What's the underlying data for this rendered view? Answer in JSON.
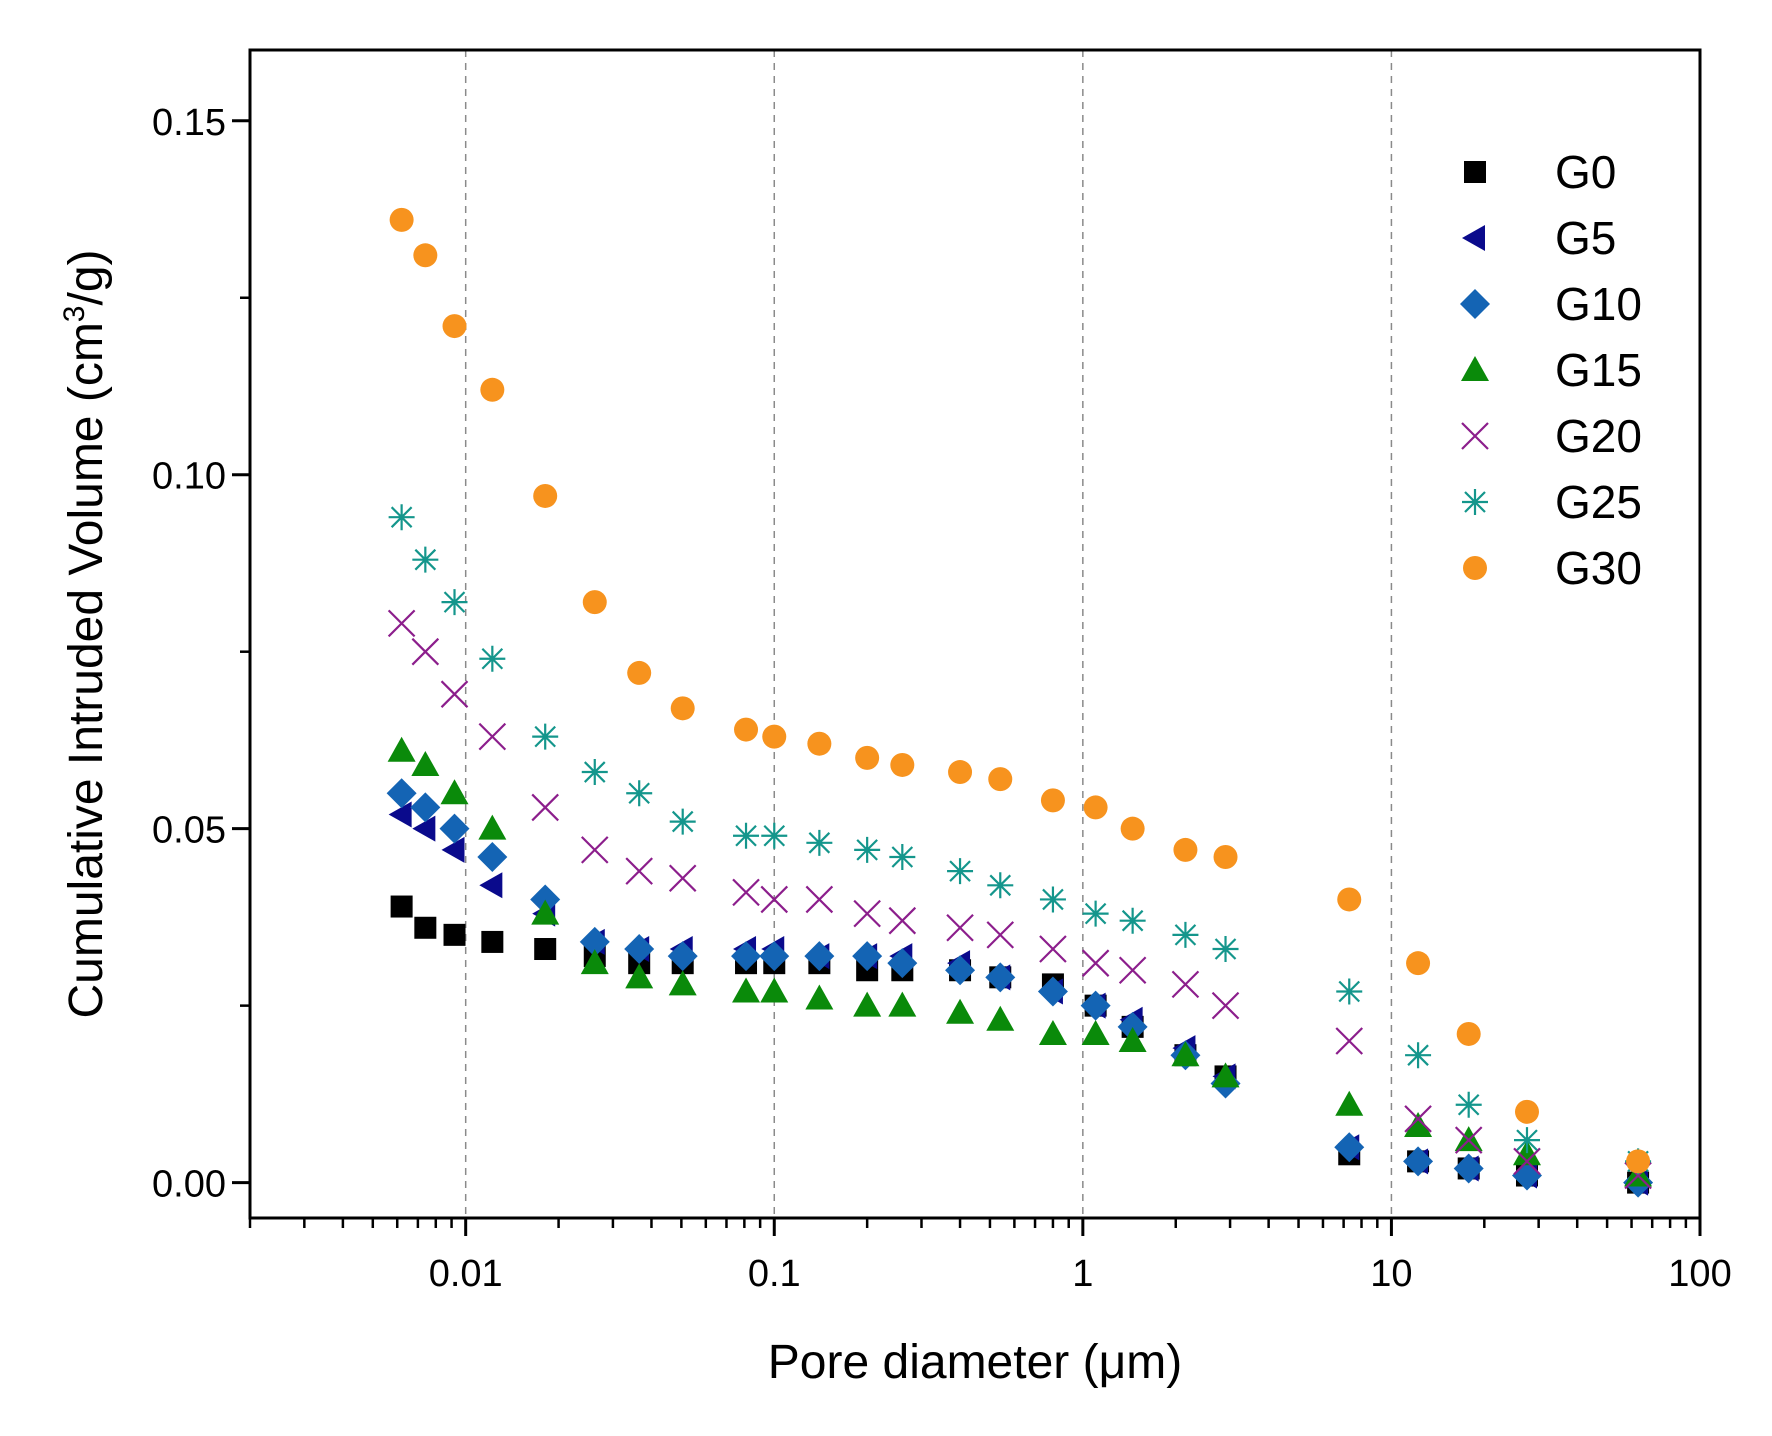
{
  "chart_data": {
    "type": "scatter",
    "xscale": "log",
    "xlabel": "Pore diameter (μm)",
    "ylabel_main": "Cumulative Intruded Volume (cm",
    "ylabel_sup": "3",
    "ylabel_end": "/g)",
    "xlim": [
      0.002,
      100
    ],
    "ylim": [
      -0.005,
      0.16
    ],
    "xticks": [
      0.01,
      0.1,
      1,
      10,
      100
    ],
    "xtick_labels": [
      "0.01",
      "0.1",
      "1",
      "10",
      "100"
    ],
    "yticks": [
      0.0,
      0.05,
      0.1,
      0.15
    ],
    "ytick_labels": [
      "0.00",
      "0.05",
      "0.10",
      "0.15"
    ],
    "vertical_gridlines": [
      0.01,
      0.1,
      1,
      10
    ],
    "legend_position": "top-right",
    "series": [
      {
        "name": "G0",
        "marker": "square",
        "color": "#000000",
        "x": [
          0.0062,
          0.0074,
          0.0092,
          0.0122,
          0.0181,
          0.0262,
          0.0365,
          0.0505,
          0.081,
          0.1,
          0.14,
          0.2,
          0.26,
          0.4,
          0.54,
          0.8,
          1.1,
          1.45,
          2.15,
          2.9,
          7.3,
          12.2,
          17.8,
          27.5,
          63
        ],
        "y": [
          0.039,
          0.036,
          0.035,
          0.034,
          0.033,
          0.032,
          0.031,
          0.031,
          0.031,
          0.031,
          0.031,
          0.03,
          0.03,
          0.03,
          0.029,
          0.028,
          0.025,
          0.022,
          0.018,
          0.015,
          0.004,
          0.003,
          0.002,
          0.001,
          0.0
        ]
      },
      {
        "name": "G5",
        "marker": "triangle-left",
        "color": "#0a0a8c",
        "x": [
          0.0062,
          0.0074,
          0.0092,
          0.0122,
          0.0181,
          0.0262,
          0.0365,
          0.0505,
          0.081,
          0.1,
          0.14,
          0.2,
          0.26,
          0.4,
          0.54,
          0.8,
          1.1,
          1.45,
          2.15,
          2.9,
          7.3,
          12.2,
          17.8,
          27.5,
          63
        ],
        "y": [
          0.052,
          0.05,
          0.047,
          0.042,
          0.038,
          0.034,
          0.033,
          0.033,
          0.033,
          0.033,
          0.032,
          0.032,
          0.032,
          0.031,
          0.029,
          0.027,
          0.025,
          0.023,
          0.019,
          0.015,
          0.005,
          0.003,
          0.002,
          0.001,
          0.0
        ]
      },
      {
        "name": "G10",
        "marker": "diamond",
        "color": "#1464b4",
        "x": [
          0.0062,
          0.0074,
          0.0092,
          0.0122,
          0.0181,
          0.0262,
          0.0365,
          0.0505,
          0.081,
          0.1,
          0.14,
          0.2,
          0.26,
          0.4,
          0.54,
          0.8,
          1.1,
          1.45,
          2.15,
          2.9,
          7.3,
          12.2,
          17.8,
          27.5,
          63
        ],
        "y": [
          0.055,
          0.053,
          0.05,
          0.046,
          0.04,
          0.034,
          0.033,
          0.032,
          0.032,
          0.032,
          0.032,
          0.032,
          0.031,
          0.03,
          0.029,
          0.027,
          0.025,
          0.022,
          0.018,
          0.014,
          0.005,
          0.003,
          0.002,
          0.001,
          0.0
        ]
      },
      {
        "name": "G15",
        "marker": "triangle-up",
        "color": "#0a8a0a",
        "x": [
          0.0062,
          0.0074,
          0.0092,
          0.0122,
          0.0181,
          0.0262,
          0.0365,
          0.0505,
          0.081,
          0.1,
          0.14,
          0.2,
          0.26,
          0.4,
          0.54,
          0.8,
          1.1,
          1.45,
          2.15,
          2.9,
          7.3,
          12.2,
          17.8,
          27.5,
          63
        ],
        "y": [
          0.061,
          0.059,
          0.055,
          0.05,
          0.038,
          0.031,
          0.029,
          0.028,
          0.027,
          0.027,
          0.026,
          0.025,
          0.025,
          0.024,
          0.023,
          0.021,
          0.021,
          0.02,
          0.018,
          0.015,
          0.011,
          0.008,
          0.006,
          0.004,
          0.001
        ]
      },
      {
        "name": "G20",
        "marker": "cross",
        "color": "#8c1e8c",
        "x": [
          0.0062,
          0.0074,
          0.0092,
          0.0122,
          0.0181,
          0.0262,
          0.0365,
          0.0505,
          0.081,
          0.1,
          0.14,
          0.2,
          0.26,
          0.4,
          0.54,
          0.8,
          1.1,
          1.45,
          2.15,
          2.9,
          7.3,
          12.2,
          17.8,
          27.5,
          63
        ],
        "y": [
          0.079,
          0.075,
          0.069,
          0.063,
          0.053,
          0.047,
          0.044,
          0.043,
          0.041,
          0.04,
          0.04,
          0.038,
          0.037,
          0.036,
          0.035,
          0.033,
          0.031,
          0.03,
          0.028,
          0.025,
          0.02,
          0.009,
          0.006,
          0.003,
          0.001
        ]
      },
      {
        "name": "G25",
        "marker": "asterisk",
        "color": "#14968c",
        "x": [
          0.0062,
          0.0074,
          0.0092,
          0.0122,
          0.0181,
          0.0262,
          0.0365,
          0.0505,
          0.081,
          0.1,
          0.14,
          0.2,
          0.26,
          0.4,
          0.54,
          0.8,
          1.1,
          1.45,
          2.15,
          2.9,
          7.3,
          12.2,
          17.8,
          27.5,
          63
        ],
        "y": [
          0.094,
          0.088,
          0.082,
          0.074,
          0.063,
          0.058,
          0.055,
          0.051,
          0.049,
          0.049,
          0.048,
          0.047,
          0.046,
          0.044,
          0.042,
          0.04,
          0.038,
          0.037,
          0.035,
          0.033,
          0.027,
          0.018,
          0.011,
          0.006,
          0.003
        ]
      },
      {
        "name": "G30",
        "marker": "circle",
        "color": "#f7931e",
        "x": [
          0.0062,
          0.0074,
          0.0092,
          0.0122,
          0.0181,
          0.0262,
          0.0365,
          0.0505,
          0.081,
          0.1,
          0.14,
          0.2,
          0.26,
          0.4,
          0.54,
          0.8,
          1.1,
          1.45,
          2.15,
          2.9,
          7.3,
          12.2,
          17.8,
          27.5,
          63
        ],
        "y": [
          0.136,
          0.131,
          0.121,
          0.112,
          0.097,
          0.082,
          0.072,
          0.067,
          0.064,
          0.063,
          0.062,
          0.06,
          0.059,
          0.058,
          0.057,
          0.054,
          0.053,
          0.05,
          0.047,
          0.046,
          0.04,
          0.031,
          0.021,
          0.01,
          0.003
        ]
      }
    ]
  }
}
